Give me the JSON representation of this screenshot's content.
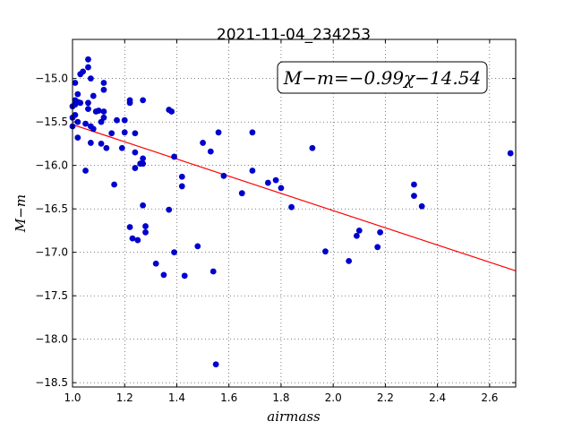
{
  "chart_data": {
    "type": "scatter",
    "title": "2021-11-04_234253",
    "xlabel": "airmass",
    "ylabel": "M−m",
    "xlim": [
      1.0,
      2.7
    ],
    "ylim": [
      -18.55,
      -14.55
    ],
    "y_inverted": true,
    "grid": true,
    "grid_style": "dotted",
    "xticks": [
      "1.0",
      "1.2",
      "1.4",
      "1.6",
      "1.8",
      "2.0",
      "2.2",
      "2.4",
      "2.6"
    ],
    "yticks": [
      "−15.0",
      "−15.5",
      "−16.0",
      "−16.5",
      "−17.0",
      "−17.5",
      "−18.0",
      "−18.5"
    ],
    "annotation": "M−m=−0.99χ−14.54",
    "annotation_position": "top-right",
    "point_color": "#0000cc",
    "fit_color": "#ff0000",
    "fit_line": {
      "slope": -0.99,
      "intercept": -14.54
    },
    "points": [
      [
        1.0,
        -15.32
      ],
      [
        1.0,
        -15.45
      ],
      [
        1.0,
        -15.55
      ],
      [
        1.01,
        -15.05
      ],
      [
        1.01,
        -15.25
      ],
      [
        1.01,
        -15.3
      ],
      [
        1.01,
        -15.42
      ],
      [
        1.02,
        -15.18
      ],
      [
        1.02,
        -15.27
      ],
      [
        1.02,
        -15.5
      ],
      [
        1.02,
        -15.68
      ],
      [
        1.03,
        -15.28
      ],
      [
        1.03,
        -14.95
      ],
      [
        1.04,
        -14.92
      ],
      [
        1.05,
        -16.06
      ],
      [
        1.05,
        -15.52
      ],
      [
        1.06,
        -14.87
      ],
      [
        1.06,
        -14.78
      ],
      [
        1.06,
        -15.28
      ],
      [
        1.06,
        -15.35
      ],
      [
        1.07,
        -15.0
      ],
      [
        1.07,
        -15.55
      ],
      [
        1.07,
        -15.74
      ],
      [
        1.08,
        -15.2
      ],
      [
        1.08,
        -15.58
      ],
      [
        1.09,
        -15.38
      ],
      [
        1.1,
        -15.37
      ],
      [
        1.11,
        -15.5
      ],
      [
        1.11,
        -15.75
      ],
      [
        1.12,
        -15.05
      ],
      [
        1.12,
        -15.13
      ],
      [
        1.12,
        -15.38
      ],
      [
        1.12,
        -15.45
      ],
      [
        1.13,
        -15.8
      ],
      [
        1.15,
        -15.63
      ],
      [
        1.16,
        -16.22
      ],
      [
        1.17,
        -15.48
      ],
      [
        1.19,
        -15.8
      ],
      [
        1.2,
        -15.48
      ],
      [
        1.2,
        -15.62
      ],
      [
        1.22,
        -15.25
      ],
      [
        1.22,
        -15.28
      ],
      [
        1.22,
        -16.71
      ],
      [
        1.23,
        -16.84
      ],
      [
        1.24,
        -15.63
      ],
      [
        1.24,
        -15.85
      ],
      [
        1.24,
        -16.03
      ],
      [
        1.25,
        -16.86
      ],
      [
        1.26,
        -15.98
      ],
      [
        1.27,
        -15.92
      ],
      [
        1.27,
        -15.25
      ],
      [
        1.27,
        -16.46
      ],
      [
        1.27,
        -15.98
      ],
      [
        1.28,
        -16.7
      ],
      [
        1.28,
        -16.77
      ],
      [
        1.32,
        -17.13
      ],
      [
        1.35,
        -17.26
      ],
      [
        1.37,
        -15.36
      ],
      [
        1.37,
        -16.51
      ],
      [
        1.38,
        -15.38
      ],
      [
        1.39,
        -17.0
      ],
      [
        1.39,
        -15.9
      ],
      [
        1.42,
        -16.13
      ],
      [
        1.42,
        -16.24
      ],
      [
        1.43,
        -17.27
      ],
      [
        1.48,
        -16.93
      ],
      [
        1.5,
        -15.74
      ],
      [
        1.53,
        -15.84
      ],
      [
        1.54,
        -17.22
      ],
      [
        1.55,
        -18.29
      ],
      [
        1.56,
        -15.62
      ],
      [
        1.58,
        -16.12
      ],
      [
        1.65,
        -16.32
      ],
      [
        1.69,
        -15.62
      ],
      [
        1.69,
        -16.06
      ],
      [
        1.75,
        -16.2
      ],
      [
        1.78,
        -16.17
      ],
      [
        1.8,
        -16.26
      ],
      [
        1.84,
        -16.48
      ],
      [
        1.92,
        -15.8
      ],
      [
        1.97,
        -16.99
      ],
      [
        2.06,
        -17.1
      ],
      [
        2.09,
        -16.81
      ],
      [
        2.1,
        -16.75
      ],
      [
        2.17,
        -16.94
      ],
      [
        2.18,
        -16.77
      ],
      [
        2.31,
        -16.22
      ],
      [
        2.31,
        -16.35
      ],
      [
        2.34,
        -16.47
      ],
      [
        2.68,
        -15.86
      ]
    ]
  }
}
